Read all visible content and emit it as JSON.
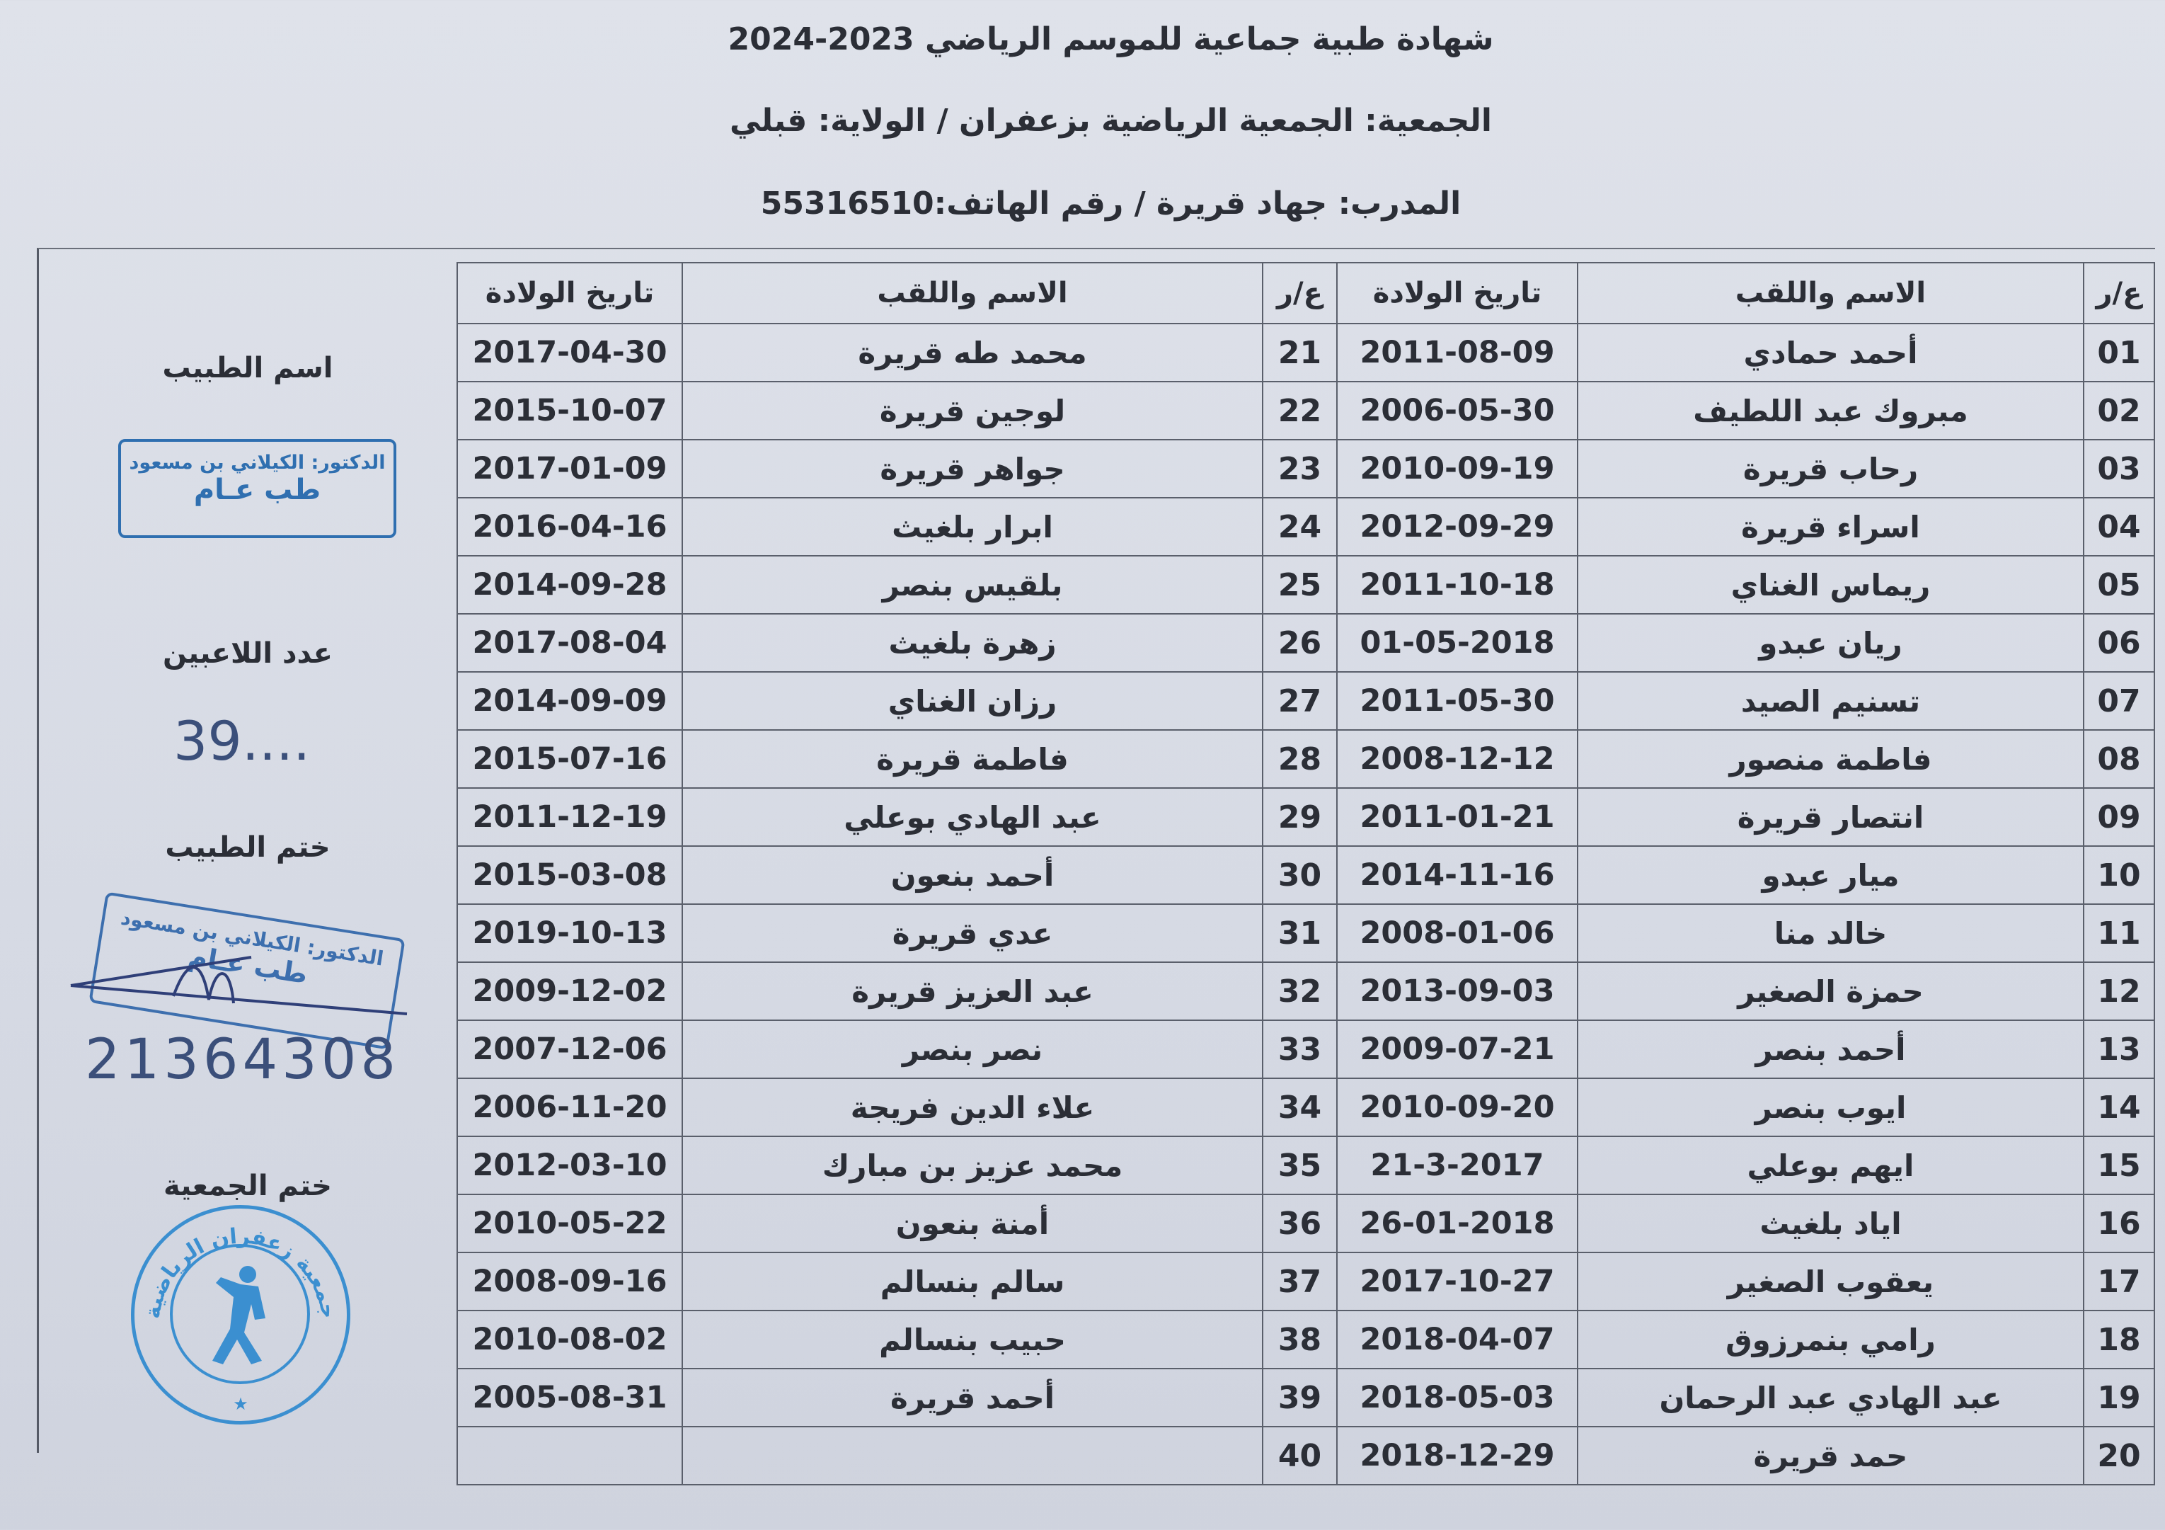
{
  "header": {
    "title": "شهادة طبية جماعية للموسم الرياضي 2023-2024",
    "association_line": "الجمعية: الجمعية الرياضية بزعفران   /   الولاية: قبلي",
    "coach_line": "المدرب: جهاد قريرة   /   رقم الهاتف:55316510"
  },
  "table": {
    "headers": {
      "num": "ع/ر",
      "name": "الاسم واللقب",
      "dob": "تاريخ الولادة"
    },
    "right": [
      [
        "01",
        "أحمد حمادي",
        "2011-08-09"
      ],
      [
        "02",
        "مبروك عبد اللطيف",
        "2006-05-30"
      ],
      [
        "03",
        "رحاب قريرة",
        "2010-09-19"
      ],
      [
        "04",
        "اسراء قريرة",
        "2012-09-29"
      ],
      [
        "05",
        "ريماس الغناي",
        "2011-10-18"
      ],
      [
        "06",
        "ريان عبدو",
        "01-05-2018"
      ],
      [
        "07",
        "تسنيم الصيد",
        "2011-05-30"
      ],
      [
        "08",
        "فاطمة منصور",
        "2008-12-12"
      ],
      [
        "09",
        "انتصار قريرة",
        "2011-01-21"
      ],
      [
        "10",
        "ميار عبدو",
        "2014-11-16"
      ],
      [
        "11",
        "خالد منا",
        "2008-01-06"
      ],
      [
        "12",
        "حمزة الصغير",
        "2013-09-03"
      ],
      [
        "13",
        "أحمد بنصر",
        "2009-07-21"
      ],
      [
        "14",
        "ايوب بنصر",
        "2010-09-20"
      ],
      [
        "15",
        "ايهم بوعلي",
        "21-3-2017"
      ],
      [
        "16",
        "اياد بلغيث",
        "26-01-2018"
      ],
      [
        "17",
        "يعقوب الصغير",
        "2017-10-27"
      ],
      [
        "18",
        "رامي بنمرزوق",
        "2018-04-07"
      ],
      [
        "19",
        "عبد الهادي عبد الرحمان",
        "2018-05-03"
      ],
      [
        "20",
        "حمد قريرة",
        "2018-12-29"
      ]
    ],
    "left": [
      [
        "21",
        "محمد طه قريرة",
        "2017-04-30"
      ],
      [
        "22",
        "لوجين قريرة",
        "2015-10-07"
      ],
      [
        "23",
        "جواهر قريرة",
        "2017-01-09"
      ],
      [
        "24",
        "ابرار بلغيث",
        "2016-04-16"
      ],
      [
        "25",
        "بلقيس بنصر",
        "2014-09-28"
      ],
      [
        "26",
        "زهرة بلغيث",
        "2017-08-04"
      ],
      [
        "27",
        "رزان الغناي",
        "2014-09-09"
      ],
      [
        "28",
        "فاطمة قريرة",
        "2015-07-16"
      ],
      [
        "29",
        "عبد الهادي بوعلي",
        "2011-12-19"
      ],
      [
        "30",
        "أحمد بنعون",
        "2015-03-08"
      ],
      [
        "31",
        "عدي قريرة",
        "2019-10-13"
      ],
      [
        "32",
        "عبد العزيز قريرة",
        "2009-12-02"
      ],
      [
        "33",
        "نصر بنصر",
        "2007-12-06"
      ],
      [
        "34",
        "علاء الدين فريجة",
        "2006-11-20"
      ],
      [
        "35",
        "محمد عزيز بن مبارك",
        "2012-03-10"
      ],
      [
        "36",
        "أمنة بنعون",
        "2010-05-22"
      ],
      [
        "37",
        "سالم بنسالم",
        "2008-09-16"
      ],
      [
        "38",
        "حبيب بنسالم",
        "2010-08-02"
      ],
      [
        "39",
        "أحمد قريرة",
        "2005-08-31"
      ],
      [
        "40",
        "",
        ""
      ]
    ]
  },
  "panel": {
    "doctor_name_label": "اسم الطبيب",
    "doctor_stamp_name": "الدكتور: الكيلاني بن مسعود",
    "doctor_stamp_specialty": "طب عـام",
    "players_count_label": "عدد اللاعبين",
    "players_count_value": "39....",
    "doctor_seal_label": "ختم الطبيب",
    "doctor_signature_number": "21364308",
    "association_seal_label": "ختم الجمعية",
    "association_seal_text": "جمعية زعفران الرياضية"
  },
  "colors": {
    "ink": "#2b2e36",
    "stamp_blue": "#2f6fb0",
    "seal_blue": "#3b8fd0",
    "paper": "#d9dde6"
  }
}
